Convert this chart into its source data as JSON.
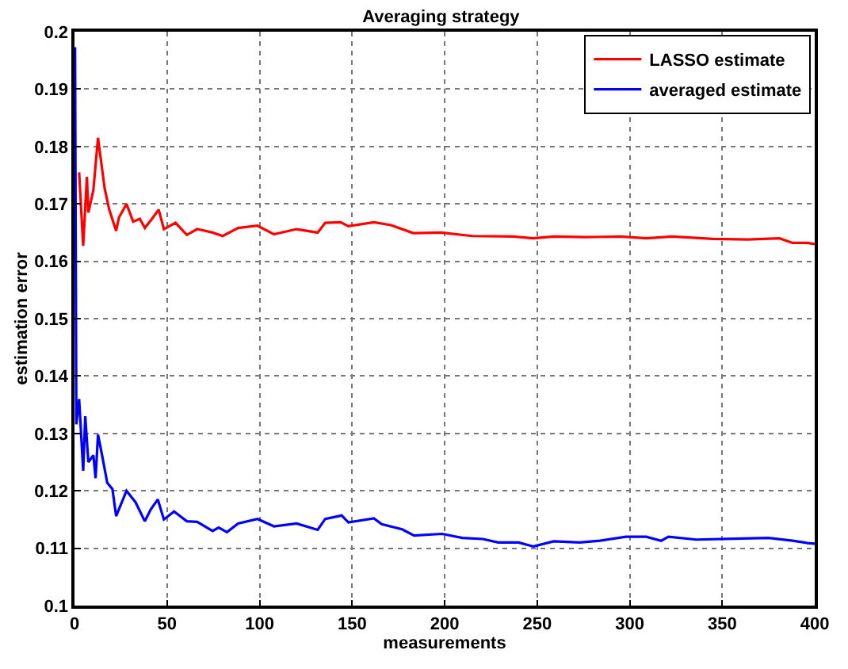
{
  "chart_data": {
    "type": "line",
    "title": "Averaging strategy",
    "xlabel": "measurements",
    "ylabel": "estimation error",
    "xlim": [
      0,
      400
    ],
    "xticks": [
      0,
      50,
      100,
      150,
      200,
      250,
      300,
      350,
      400
    ],
    "ylim": [
      0.1,
      0.2
    ],
    "yticks": [
      0.1,
      0.11,
      0.12,
      0.13,
      0.14,
      0.15,
      0.16,
      0.17,
      0.18,
      0.19,
      0.2
    ],
    "grid": true,
    "legend": "top right",
    "line_style": "solid",
    "marker": "none",
    "series": [
      {
        "name": "LASSO estimate",
        "color": "#ff0000",
        "x": [
          2.5,
          4.7,
          6.7,
          7.5,
          10.2,
          12.7,
          16.3,
          18.7,
          22.5,
          24,
          28.1,
          31.7,
          35.3,
          38,
          41.9,
          45.5,
          48.3,
          54.6,
          60.7,
          66.3,
          74.6,
          80.1,
          88.4,
          98.9,
          107.8,
          120,
          131.4,
          135.5,
          143.8,
          148,
          161.8,
          171,
          183,
          198,
          215,
          237,
          248,
          259,
          276,
          295,
          309,
          323,
          345,
          364,
          381,
          388,
          396,
          400
        ],
        "values": [
          0.1755,
          0.1627,
          0.1747,
          0.1685,
          0.1724,
          0.1815,
          0.1727,
          0.1691,
          0.1653,
          0.1676,
          0.17,
          0.1669,
          0.1674,
          0.1658,
          0.1674,
          0.169,
          0.1656,
          0.1667,
          0.1646,
          0.1656,
          0.165,
          0.1644,
          0.1658,
          0.1662,
          0.1647,
          0.1656,
          0.165,
          0.1667,
          0.1668,
          0.1661,
          0.1668,
          0.1663,
          0.1649,
          0.165,
          0.1644,
          0.1643,
          0.164,
          0.1643,
          0.1642,
          0.1643,
          0.164,
          0.1643,
          0.1639,
          0.1638,
          0.164,
          0.1632,
          0.1632,
          0.163
        ]
      },
      {
        "name": "averaged estimate",
        "color": "#0000ff",
        "x": [
          0.3,
          1,
          2.5,
          4.7,
          5.8,
          7.5,
          10.2,
          11.4,
          12.7,
          14.9,
          17.7,
          20.5,
          22.5,
          28.1,
          33,
          38,
          41.3,
          45,
          48.3,
          53.8,
          60.7,
          66.3,
          74.6,
          77.9,
          82.4,
          88.4,
          98.9,
          107.8,
          120,
          131.4,
          135.5,
          144.4,
          148,
          161.8,
          166,
          177,
          183.5,
          198.6,
          209.6,
          220.6,
          229,
          240,
          248,
          259,
          273,
          284,
          298,
          309,
          317,
          321,
          336,
          361,
          375,
          388,
          396,
          400
        ],
        "values": [
          0.1973,
          0.1316,
          0.136,
          0.1235,
          0.133,
          0.125,
          0.1262,
          0.1222,
          0.1298,
          0.1262,
          0.1214,
          0.1203,
          0.1156,
          0.12,
          0.118,
          0.1147,
          0.1168,
          0.1185,
          0.115,
          0.1164,
          0.1147,
          0.1146,
          0.113,
          0.1136,
          0.1128,
          0.1143,
          0.1151,
          0.1138,
          0.1143,
          0.1132,
          0.1151,
          0.1157,
          0.1145,
          0.1152,
          0.1142,
          0.1133,
          0.1122,
          0.1125,
          0.1118,
          0.1116,
          0.111,
          0.111,
          0.1103,
          0.1112,
          0.111,
          0.1113,
          0.112,
          0.112,
          0.1113,
          0.112,
          0.1115,
          0.1117,
          0.1118,
          0.1113,
          0.1109,
          0.1108
        ]
      }
    ]
  }
}
